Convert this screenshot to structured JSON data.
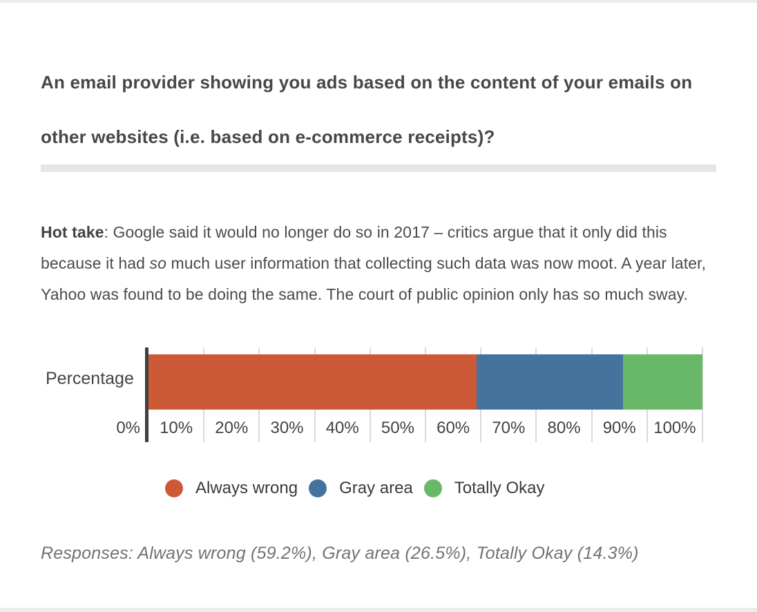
{
  "page": {
    "question": "An email provider showing you ads based on the content of your emails on other websites (i.e. based on e-commerce receipts)?",
    "hot_take": {
      "label": "Hot take",
      "text_before_italic": ": Google said it would no longer do so in 2017 – critics argue that it only did this because it had ",
      "italic_word": "so",
      "text_after_italic": " much user information that collecting such data was now moot. A year later, Yahoo was found to be doing the same. The court of public opinion only has so much sway."
    },
    "responses_note": "Responses: Always wrong (59.2%), Gray area (26.5%), Totally Okay (14.3%)"
  },
  "chart_data": {
    "type": "bar",
    "orientation": "horizontal",
    "stacked": true,
    "categories": [
      "Percentage"
    ],
    "series": [
      {
        "name": "Always wrong",
        "values": [
          59.2
        ],
        "color": "#cd5a37"
      },
      {
        "name": "Gray area",
        "values": [
          26.5
        ],
        "color": "#44739d"
      },
      {
        "name": "Totally Okay",
        "values": [
          14.3
        ],
        "color": "#69b868"
      }
    ],
    "y_axis_label": "Percentage",
    "x_axis": {
      "min": 0,
      "max": 100,
      "ticks": [
        "0%",
        "10%",
        "20%",
        "30%",
        "40%",
        "50%",
        "60%",
        "70%",
        "80%",
        "90%",
        "100%"
      ],
      "grid": true,
      "gridline_color": "#d9d9d9",
      "axis_color": "#3f3f3f"
    },
    "legend": {
      "position": "bottom",
      "items": [
        "Always wrong",
        "Gray area",
        "Totally Okay"
      ]
    },
    "title": "",
    "xlabel": "",
    "ylabel": "Percentage"
  }
}
